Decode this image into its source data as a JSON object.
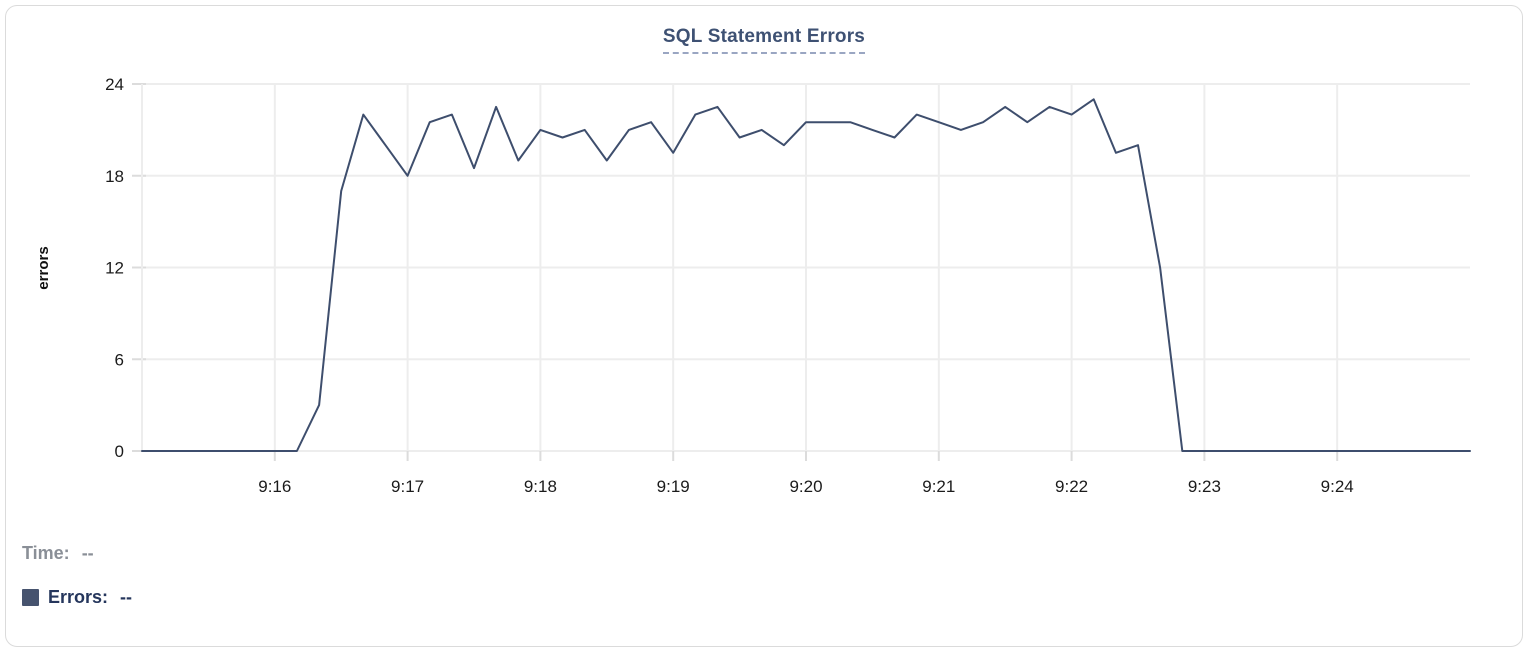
{
  "title": "SQL Statement Errors",
  "legend": {
    "time": {
      "label": "Time:",
      "value": "--"
    },
    "errors": {
      "label": "Errors:",
      "value": "--"
    }
  },
  "colors": {
    "line": "#3e4e6d",
    "swatch": "#46536e",
    "title": "#3e5173",
    "grid": "#ededed",
    "tick": "#dcdcdc",
    "axis_text": "#1b1b1b"
  },
  "chart_data": {
    "type": "line",
    "title": "SQL Statement Errors",
    "xlabel": "",
    "ylabel": "errors",
    "ylim": [
      0,
      24
    ],
    "yticks": [
      0,
      6,
      12,
      18,
      24
    ],
    "xticks": [
      "9:16",
      "9:17",
      "9:18",
      "9:19",
      "9:20",
      "9:21",
      "9:22",
      "9:23",
      "9:24"
    ],
    "x_range": [
      "9:15:00",
      "9:25:00"
    ],
    "grid": true,
    "legend_position": "bottom-left",
    "series": [
      {
        "name": "Errors",
        "x": [
          "9:15:00",
          "9:15:10",
          "9:15:20",
          "9:15:30",
          "9:15:40",
          "9:15:50",
          "9:16:00",
          "9:16:10",
          "9:16:20",
          "9:16:30",
          "9:16:40",
          "9:16:50",
          "9:17:00",
          "9:17:10",
          "9:17:20",
          "9:17:30",
          "9:17:40",
          "9:17:50",
          "9:18:00",
          "9:18:10",
          "9:18:20",
          "9:18:30",
          "9:18:40",
          "9:18:50",
          "9:19:00",
          "9:19:10",
          "9:19:20",
          "9:19:30",
          "9:19:40",
          "9:19:50",
          "9:20:00",
          "9:20:10",
          "9:20:20",
          "9:20:30",
          "9:20:40",
          "9:20:50",
          "9:21:00",
          "9:21:10",
          "9:21:20",
          "9:21:30",
          "9:21:40",
          "9:21:50",
          "9:22:00",
          "9:22:10",
          "9:22:20",
          "9:22:30",
          "9:22:40",
          "9:22:50",
          "9:23:00",
          "9:23:10",
          "9:23:20",
          "9:23:30",
          "9:23:40",
          "9:23:50",
          "9:24:00",
          "9:24:10",
          "9:24:20",
          "9:24:30",
          "9:24:40",
          "9:24:50",
          "9:25:00"
        ],
        "values": [
          0,
          0,
          0,
          0,
          0,
          0,
          0,
          0,
          3,
          17,
          22,
          20,
          18,
          21.5,
          22,
          18.5,
          22.5,
          19,
          21,
          20.5,
          21,
          19,
          21,
          21.5,
          19.5,
          22,
          22.5,
          20.5,
          21,
          20,
          21.5,
          21.5,
          21.5,
          21,
          20.5,
          22,
          21.5,
          21,
          21.5,
          22.5,
          21.5,
          22.5,
          22,
          23,
          19.5,
          20,
          12,
          0,
          0,
          0,
          0,
          0,
          0,
          0,
          0,
          0,
          0,
          0,
          0,
          0,
          0
        ]
      }
    ]
  }
}
